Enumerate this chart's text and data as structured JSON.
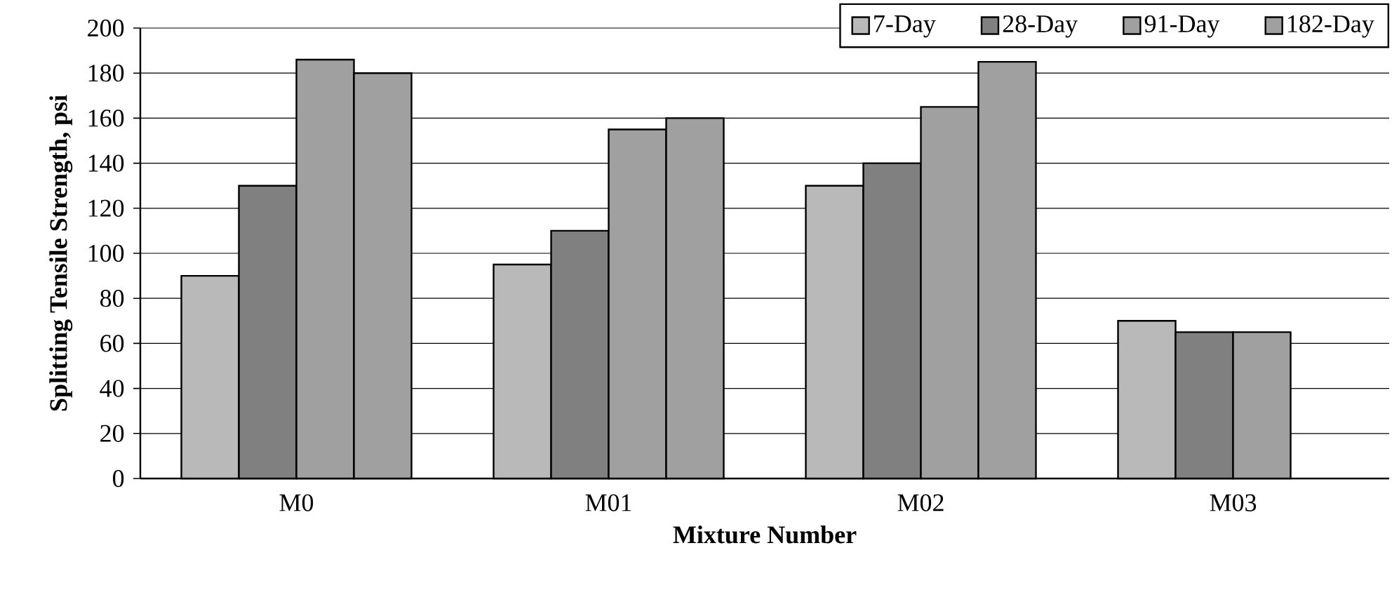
{
  "chart_data": {
    "type": "bar",
    "xlabel": "Mixture Number",
    "ylabel": "Splitting Tensile Strength, psi",
    "categories": [
      "M0",
      "M01",
      "M02",
      "M03"
    ],
    "series": [
      {
        "name": "7-Day",
        "color": "#b9b9b9",
        "values": [
          90,
          95,
          130,
          70
        ]
      },
      {
        "name": "28-Day",
        "color": "#808080",
        "values": [
          130,
          110,
          140,
          65
        ]
      },
      {
        "name": "91-Day",
        "color": "#a0a0a0",
        "values": [
          186,
          155,
          165,
          65
        ]
      },
      {
        "name": "182-Day",
        "color": "#a0a0a0",
        "values": [
          180,
          160,
          185,
          null
        ]
      }
    ],
    "ylim": [
      0,
      200
    ],
    "yticks": [
      0,
      20,
      40,
      60,
      80,
      100,
      120,
      140,
      160,
      180,
      200
    ],
    "grid": "y",
    "legend": "top right"
  }
}
